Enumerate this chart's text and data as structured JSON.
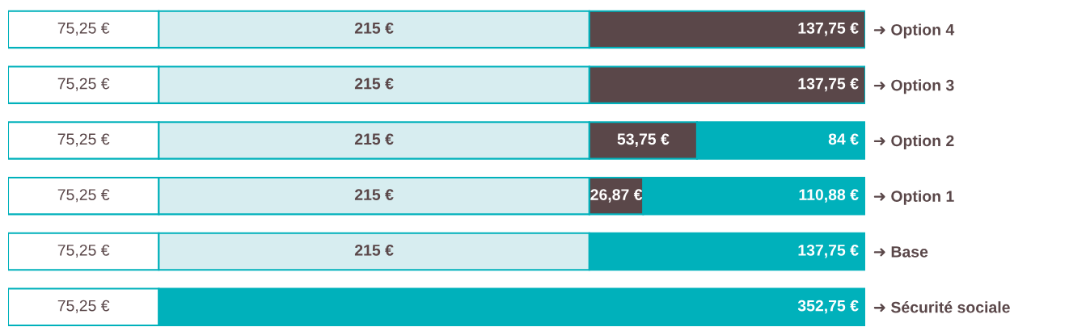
{
  "chart_data": {
    "type": "bar",
    "orientation": "horizontal",
    "stacked": true,
    "tick_labels": "y",
    "categories": [
      "➜ Option 4",
      "➜ Option 3",
      "➜ Option 2",
      "➜ Option 1",
      "➜ Base",
      "➜ Sécurité sociale"
    ],
    "series": [
      {
        "color": "#ffffff",
        "values": [
          75.25,
          75.25,
          75.25,
          75.25,
          75.25,
          75.25
        ],
        "value_labels": [
          "75,25 €",
          "75,25 €",
          "75,25 €",
          "75,25 €",
          "75,25 €",
          "75,25 €"
        ]
      },
      {
        "color": "#d7edf0",
        "values": [
          215,
          215,
          215,
          215,
          215,
          null
        ],
        "value_labels": [
          "215 €",
          "215 €",
          "215 €",
          "215 €",
          "215 €",
          null
        ]
      },
      {
        "color": "#5a4749",
        "values": [
          137.75,
          137.75,
          53.75,
          26.87,
          null,
          null
        ],
        "value_labels": [
          "137,75 €",
          "137,75 €",
          "53,75 €",
          "26,87 €",
          null,
          null
        ]
      },
      {
        "color": "#00b1bb",
        "values": [
          null,
          null,
          84,
          110.88,
          137.75,
          352.75
        ],
        "value_labels": [
          null,
          null,
          "84 €",
          "110,88 €",
          "137,75 €",
          "352,75 €"
        ]
      }
    ]
  }
}
